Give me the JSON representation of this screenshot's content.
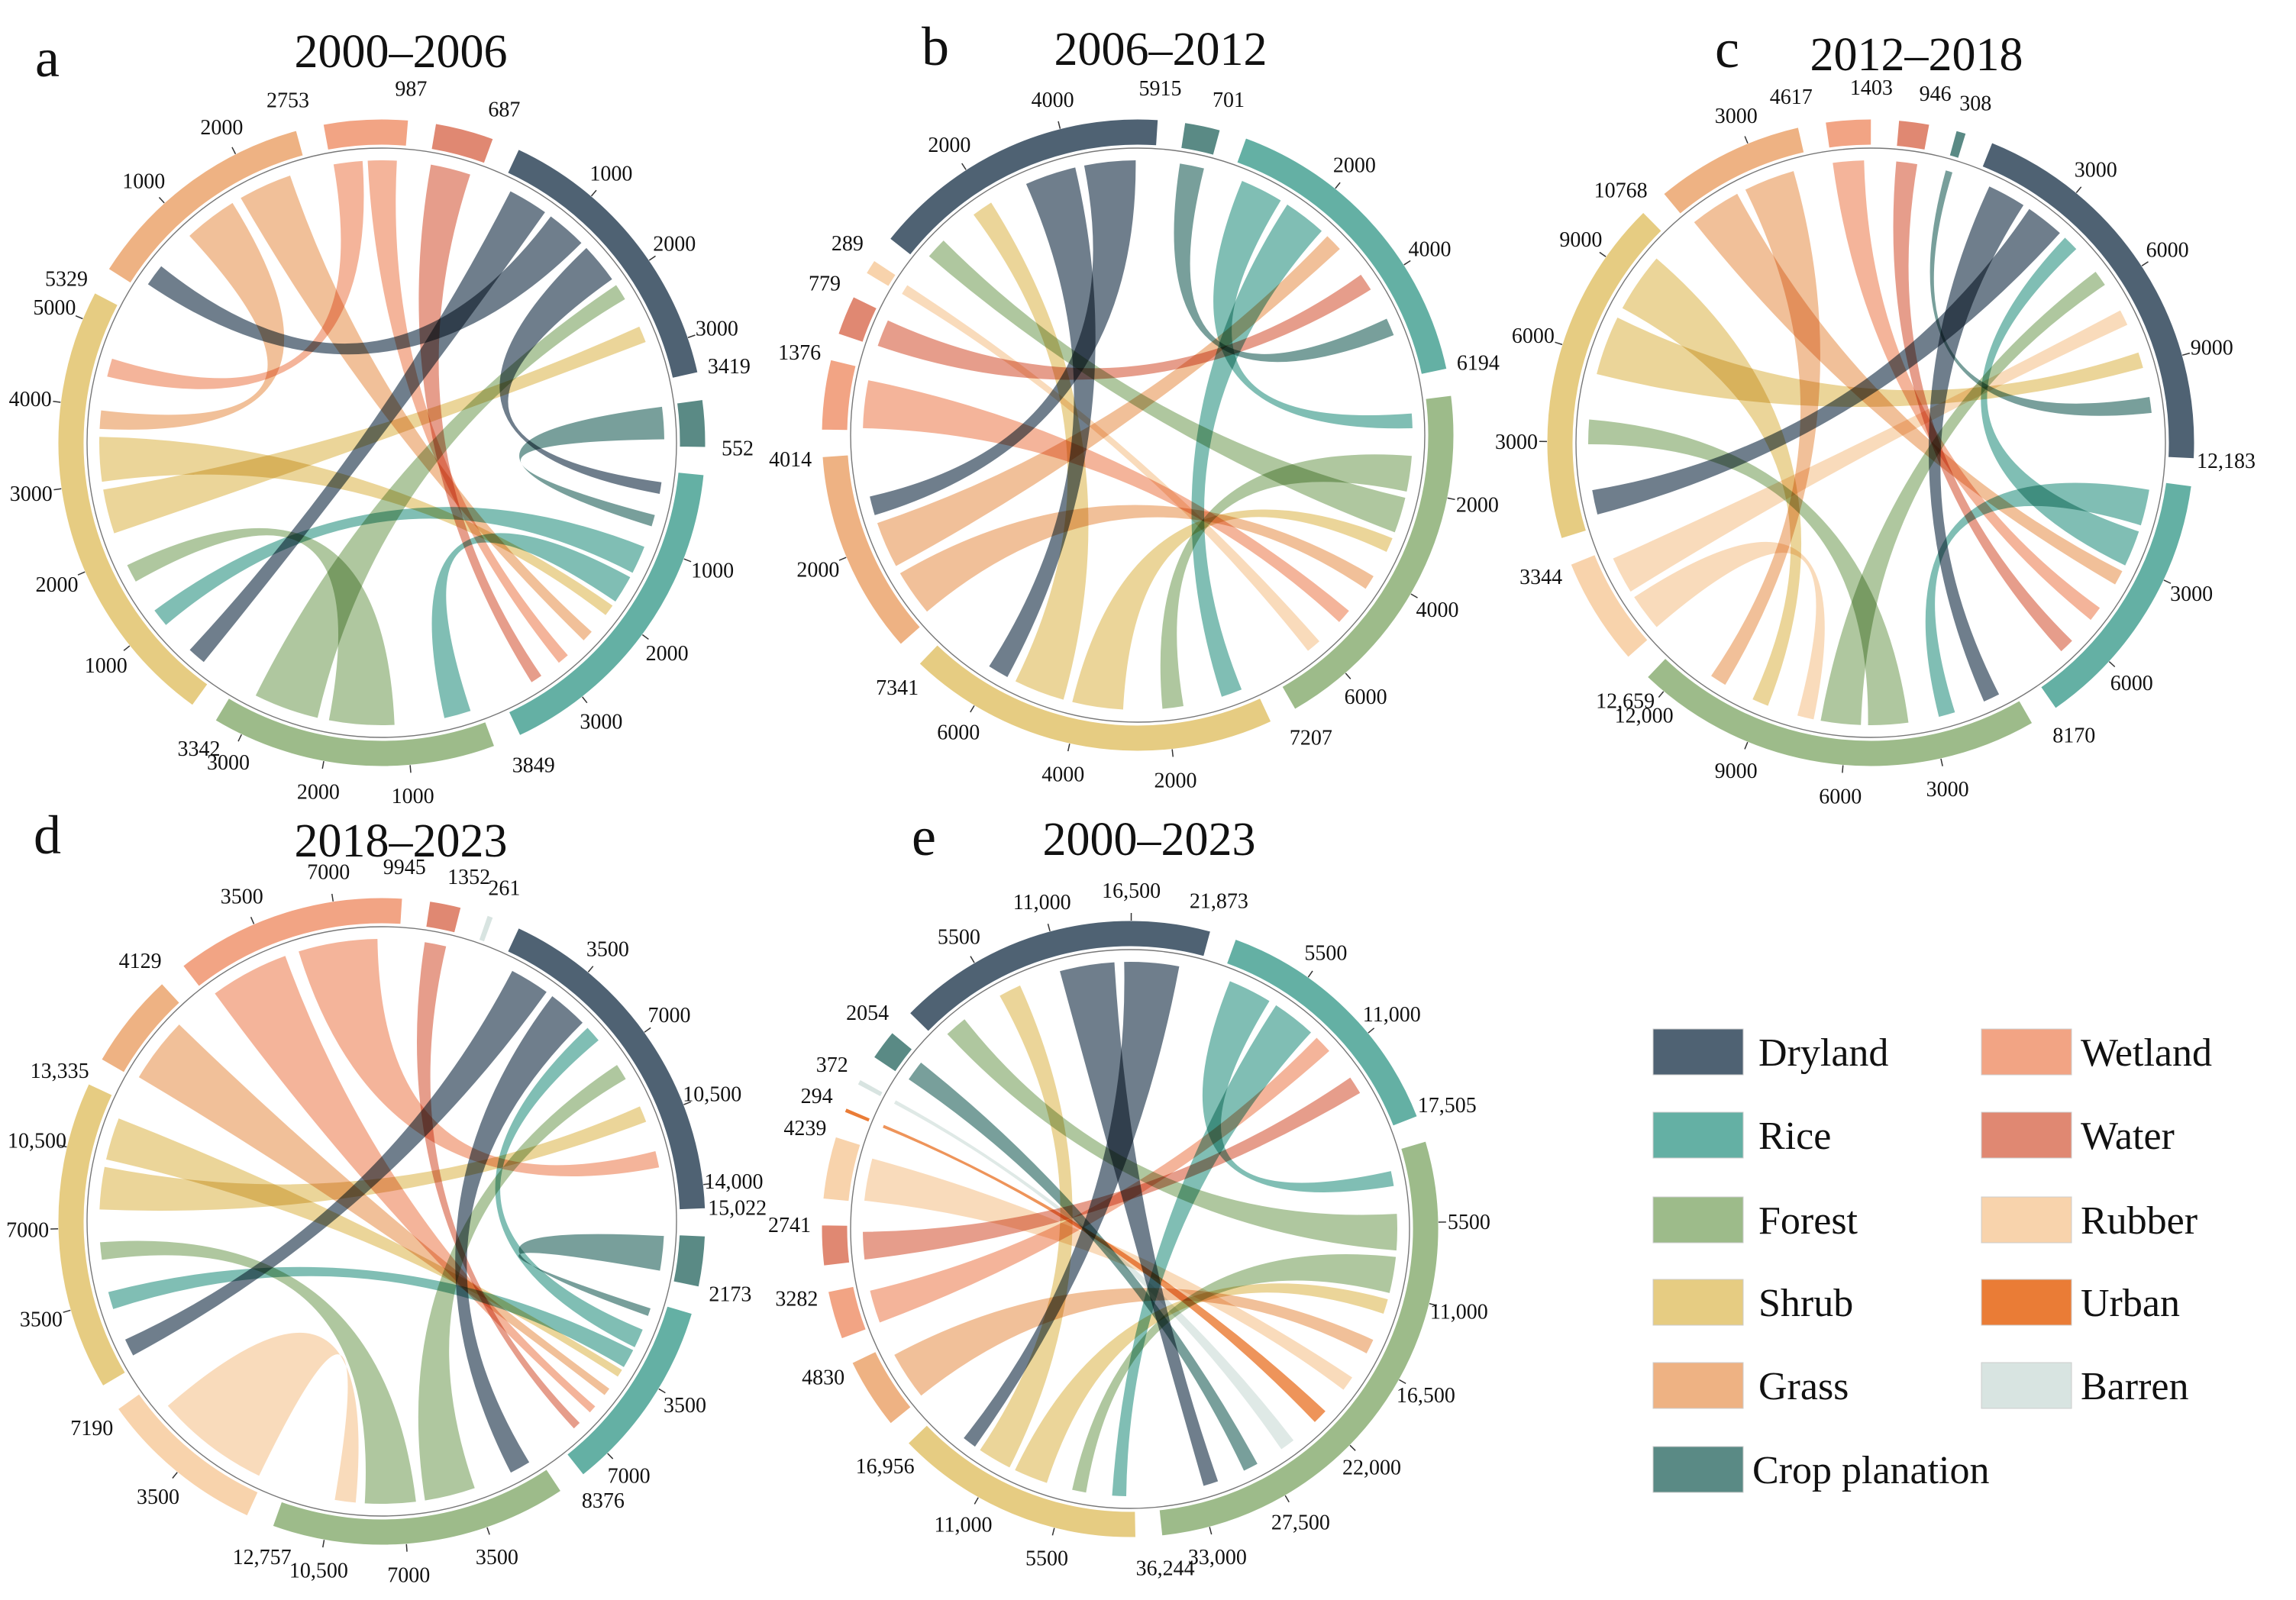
{
  "legend": {
    "items": [
      {
        "name": "Dryland",
        "color": "#4f6273"
      },
      {
        "name": "Wetland",
        "color": "#f2a484"
      },
      {
        "name": "Rice",
        "color": "#64b0a4"
      },
      {
        "name": "Water",
        "color": "#e08872"
      },
      {
        "name": "Forest",
        "color": "#9dbb8a"
      },
      {
        "name": "Rubber",
        "color": "#f8d3ac"
      },
      {
        "name": "Shrub",
        "color": "#e6cc82"
      },
      {
        "name": "Urban",
        "color": "#ea7c36"
      },
      {
        "name": "Grass",
        "color": "#eeb283"
      },
      {
        "name": "Barren",
        "color": "#d8e4e1"
      },
      {
        "name": "Crop planation",
        "color": "#5a8a85"
      }
    ]
  },
  "chart_data": [
    {
      "type": "chord",
      "panel": "a",
      "title": "2000–2006",
      "segments": [
        {
          "category": "Dryland",
          "total": 3419,
          "ticks": [
            "1000",
            "2000",
            "3000"
          ],
          "total_label": "3419"
        },
        {
          "category": "Crop planation",
          "total": 552,
          "ticks": [],
          "total_label": "552"
        },
        {
          "category": "Rice",
          "total": 3849,
          "ticks": [
            "1000",
            "2000",
            "3000"
          ],
          "total_label": "3849"
        },
        {
          "category": "Forest",
          "total": 3342,
          "ticks": [
            "1000",
            "2000",
            "3000"
          ],
          "total_label": "3342"
        },
        {
          "category": "Shrub",
          "total": 5329,
          "ticks": [
            "1000",
            "2000",
            "3000",
            "4000",
            "5000"
          ],
          "total_label": "5329"
        },
        {
          "category": "Grass",
          "total": 2753,
          "ticks": [
            "1000",
            "2000"
          ],
          "total_label": "2753"
        },
        {
          "category": "Wetland",
          "total": 987,
          "ticks": [],
          "total_label": "987"
        },
        {
          "category": "Water",
          "total": 687,
          "ticks": [],
          "total_label": "687"
        }
      ],
      "flows": [
        {
          "from": "Dryland",
          "to": "Shrub"
        },
        {
          "from": "Dryland",
          "to": "Grass"
        },
        {
          "from": "Dryland",
          "to": "Rice"
        },
        {
          "from": "Crop planation",
          "to": "Rice"
        },
        {
          "from": "Rice",
          "to": "Shrub"
        },
        {
          "from": "Rice",
          "to": "Forest"
        },
        {
          "from": "Forest",
          "to": "Shrub"
        },
        {
          "from": "Forest",
          "to": "Dryland"
        },
        {
          "from": "Shrub",
          "to": "Dryland"
        },
        {
          "from": "Shrub",
          "to": "Rice"
        },
        {
          "from": "Grass",
          "to": "Shrub"
        },
        {
          "from": "Grass",
          "to": "Rice"
        },
        {
          "from": "Wetland",
          "to": "Shrub"
        },
        {
          "from": "Wetland",
          "to": "Rice"
        },
        {
          "from": "Water",
          "to": "Rice"
        }
      ]
    },
    {
      "type": "chord",
      "panel": "b",
      "title": "2006–2012",
      "segments": [
        {
          "category": "Rice",
          "total": 6194,
          "ticks": [
            "2000",
            "4000"
          ],
          "total_label": "6194"
        },
        {
          "category": "Forest",
          "total": 7207,
          "ticks": [
            "2000",
            "4000",
            "6000"
          ],
          "total_label": "7207"
        },
        {
          "category": "Shrub",
          "total": 7341,
          "ticks": [
            "2000",
            "4000",
            "6000"
          ],
          "total_label": "7341"
        },
        {
          "category": "Grass",
          "total": 4014,
          "ticks": [
            "2000"
          ],
          "total_label": "4014"
        },
        {
          "category": "Wetland",
          "total": 1376,
          "ticks": [],
          "total_label": "1376"
        },
        {
          "category": "Water",
          "total": 779,
          "ticks": [],
          "total_label": "779"
        },
        {
          "category": "Rubber",
          "total": 289,
          "ticks": [],
          "total_label": "289"
        },
        {
          "category": "Dryland",
          "total": 5915,
          "ticks": [
            "2000",
            "4000"
          ],
          "total_label": "5915"
        },
        {
          "category": "Crop planation",
          "total": 701,
          "ticks": [],
          "total_label": "701"
        }
      ],
      "flows": [
        {
          "from": "Rice",
          "to": "Forest"
        },
        {
          "from": "Rice",
          "to": "Shrub"
        },
        {
          "from": "Forest",
          "to": "Shrub"
        },
        {
          "from": "Forest",
          "to": "Dryland"
        },
        {
          "from": "Shrub",
          "to": "Forest"
        },
        {
          "from": "Shrub",
          "to": "Dryland"
        },
        {
          "from": "Grass",
          "to": "Forest"
        },
        {
          "from": "Grass",
          "to": "Rice"
        },
        {
          "from": "Wetland",
          "to": "Forest"
        },
        {
          "from": "Water",
          "to": "Rice"
        },
        {
          "from": "Rubber",
          "to": "Forest"
        },
        {
          "from": "Dryland",
          "to": "Shrub"
        },
        {
          "from": "Dryland",
          "to": "Grass"
        },
        {
          "from": "Crop planation",
          "to": "Rice"
        }
      ]
    },
    {
      "type": "chord",
      "panel": "c",
      "title": "2012–2018",
      "segments": [
        {
          "category": "Dryland",
          "total": 12183,
          "ticks": [
            "3000",
            "6000",
            "9000"
          ],
          "total_label": "12,183"
        },
        {
          "category": "Rice",
          "total": 8170,
          "ticks": [
            "3000",
            "6000"
          ],
          "total_label": "8170"
        },
        {
          "category": "Forest",
          "total": 12659,
          "ticks": [
            "3000",
            "6000",
            "9000",
            "12,000"
          ],
          "total_label": "12,659"
        },
        {
          "category": "Rubber",
          "total": 3344,
          "ticks": [],
          "total_label": "3344"
        },
        {
          "category": "Shrub",
          "total": 10768,
          "ticks": [
            "3000",
            "6000",
            "9000"
          ],
          "total_label": "10768"
        },
        {
          "category": "Grass",
          "total": 4617,
          "ticks": [
            "3000"
          ],
          "total_label": "4617"
        },
        {
          "category": "Wetland",
          "total": 1403,
          "ticks": [],
          "total_label": "1403"
        },
        {
          "category": "Water",
          "total": 946,
          "ticks": [],
          "total_label": "946"
        },
        {
          "category": "Crop planation",
          "total": 308,
          "ticks": [],
          "total_label": "308"
        }
      ],
      "flows": [
        {
          "from": "Dryland",
          "to": "Forest"
        },
        {
          "from": "Dryland",
          "to": "Shrub"
        },
        {
          "from": "Rice",
          "to": "Forest"
        },
        {
          "from": "Rice",
          "to": "Dryland"
        },
        {
          "from": "Forest",
          "to": "Shrub"
        },
        {
          "from": "Forest",
          "to": "Dryland"
        },
        {
          "from": "Rubber",
          "to": "Forest"
        },
        {
          "from": "Rubber",
          "to": "Dryland"
        },
        {
          "from": "Shrub",
          "to": "Dryland"
        },
        {
          "from": "Shrub",
          "to": "Forest"
        },
        {
          "from": "Grass",
          "to": "Rice"
        },
        {
          "from": "Grass",
          "to": "Forest"
        },
        {
          "from": "Wetland",
          "to": "Rice"
        },
        {
          "from": "Water",
          "to": "Rice"
        },
        {
          "from": "Crop planation",
          "to": "Dryland"
        }
      ]
    },
    {
      "type": "chord",
      "panel": "d",
      "title": "2018–2023",
      "segments": [
        {
          "category": "Dryland",
          "total": 15022,
          "ticks": [
            "3500",
            "7000",
            "10,500",
            "14,000"
          ],
          "total_label": "15,022"
        },
        {
          "category": "Crop planation",
          "total": 2173,
          "ticks": [],
          "total_label": "2173"
        },
        {
          "category": "Rice",
          "total": 8376,
          "ticks": [
            "3500",
            "7000"
          ],
          "total_label": "8376"
        },
        {
          "category": "Forest",
          "total": 12757,
          "ticks": [
            "3500",
            "7000",
            "10,500"
          ],
          "total_label": "12,757"
        },
        {
          "category": "Rubber",
          "total": 7190,
          "ticks": [
            "3500"
          ],
          "total_label": "7190"
        },
        {
          "category": "Shrub",
          "total": 13335,
          "ticks": [
            "3500",
            "7000",
            "10,500"
          ],
          "total_label": "13,335"
        },
        {
          "category": "Grass",
          "total": 4129,
          "ticks": [],
          "total_label": "4129"
        },
        {
          "category": "Wetland",
          "total": 9945,
          "ticks": [
            "3500",
            "7000"
          ],
          "total_label": "9945"
        },
        {
          "category": "Water",
          "total": 1352,
          "ticks": [],
          "total_label": "1352"
        },
        {
          "category": "Barren",
          "total": 261,
          "ticks": [],
          "total_label": "261"
        }
      ],
      "flows": [
        {
          "from": "Dryland",
          "to": "Shrub"
        },
        {
          "from": "Dryland",
          "to": "Forest"
        },
        {
          "from": "Crop planation",
          "to": "Rice"
        },
        {
          "from": "Rice",
          "to": "Dryland"
        },
        {
          "from": "Rice",
          "to": "Shrub"
        },
        {
          "from": "Forest",
          "to": "Dryland"
        },
        {
          "from": "Forest",
          "to": "Shrub"
        },
        {
          "from": "Rubber",
          "to": "Forest"
        },
        {
          "from": "Shrub",
          "to": "Dryland"
        },
        {
          "from": "Shrub",
          "to": "Rice"
        },
        {
          "from": "Grass",
          "to": "Rice"
        },
        {
          "from": "Wetland",
          "to": "Rice"
        },
        {
          "from": "Wetland",
          "to": "Dryland"
        },
        {
          "from": "Water",
          "to": "Rice"
        }
      ]
    },
    {
      "type": "chord",
      "panel": "e",
      "title": "2000–2023",
      "segments": [
        {
          "category": "Rice",
          "total": 17505,
          "ticks": [
            "5500",
            "11,000"
          ],
          "total_label": "17,505"
        },
        {
          "category": "Forest",
          "total": 36244,
          "ticks": [
            "5500",
            "11,000",
            "16,500",
            "22,000",
            "27,500",
            "33,000"
          ],
          "total_label": "36,244"
        },
        {
          "category": "Shrub",
          "total": 16956,
          "ticks": [
            "5500",
            "11,000"
          ],
          "total_label": "16,956"
        },
        {
          "category": "Grass",
          "total": 4830,
          "ticks": [],
          "total_label": "4830"
        },
        {
          "category": "Wetland",
          "total": 3282,
          "ticks": [],
          "total_label": "3282"
        },
        {
          "category": "Water",
          "total": 2741,
          "ticks": [],
          "total_label": "2741"
        },
        {
          "category": "Rubber",
          "total": 4239,
          "ticks": [],
          "total_label": "4239"
        },
        {
          "category": "Urban",
          "total": 294,
          "ticks": [],
          "total_label": "294"
        },
        {
          "category": "Barren",
          "total": 372,
          "ticks": [],
          "total_label": "372"
        },
        {
          "category": "Crop planation",
          "total": 2054,
          "ticks": [],
          "total_label": "2054"
        },
        {
          "category": "Dryland",
          "total": 21873,
          "ticks": [
            "5500",
            "11,000",
            "16,500"
          ],
          "total_label": "21,873"
        }
      ],
      "flows": [
        {
          "from": "Rice",
          "to": "Forest"
        },
        {
          "from": "Rice",
          "to": "Shrub"
        },
        {
          "from": "Forest",
          "to": "Dryland"
        },
        {
          "from": "Forest",
          "to": "Shrub"
        },
        {
          "from": "Shrub",
          "to": "Forest"
        },
        {
          "from": "Shrub",
          "to": "Dryland"
        },
        {
          "from": "Grass",
          "to": "Forest"
        },
        {
          "from": "Wetland",
          "to": "Rice"
        },
        {
          "from": "Water",
          "to": "Rice"
        },
        {
          "from": "Rubber",
          "to": "Forest"
        },
        {
          "from": "Urban",
          "to": "Forest"
        },
        {
          "from": "Barren",
          "to": "Forest"
        },
        {
          "from": "Crop planation",
          "to": "Forest"
        },
        {
          "from": "Dryland",
          "to": "Forest"
        },
        {
          "from": "Dryland",
          "to": "Shrub"
        }
      ]
    }
  ]
}
